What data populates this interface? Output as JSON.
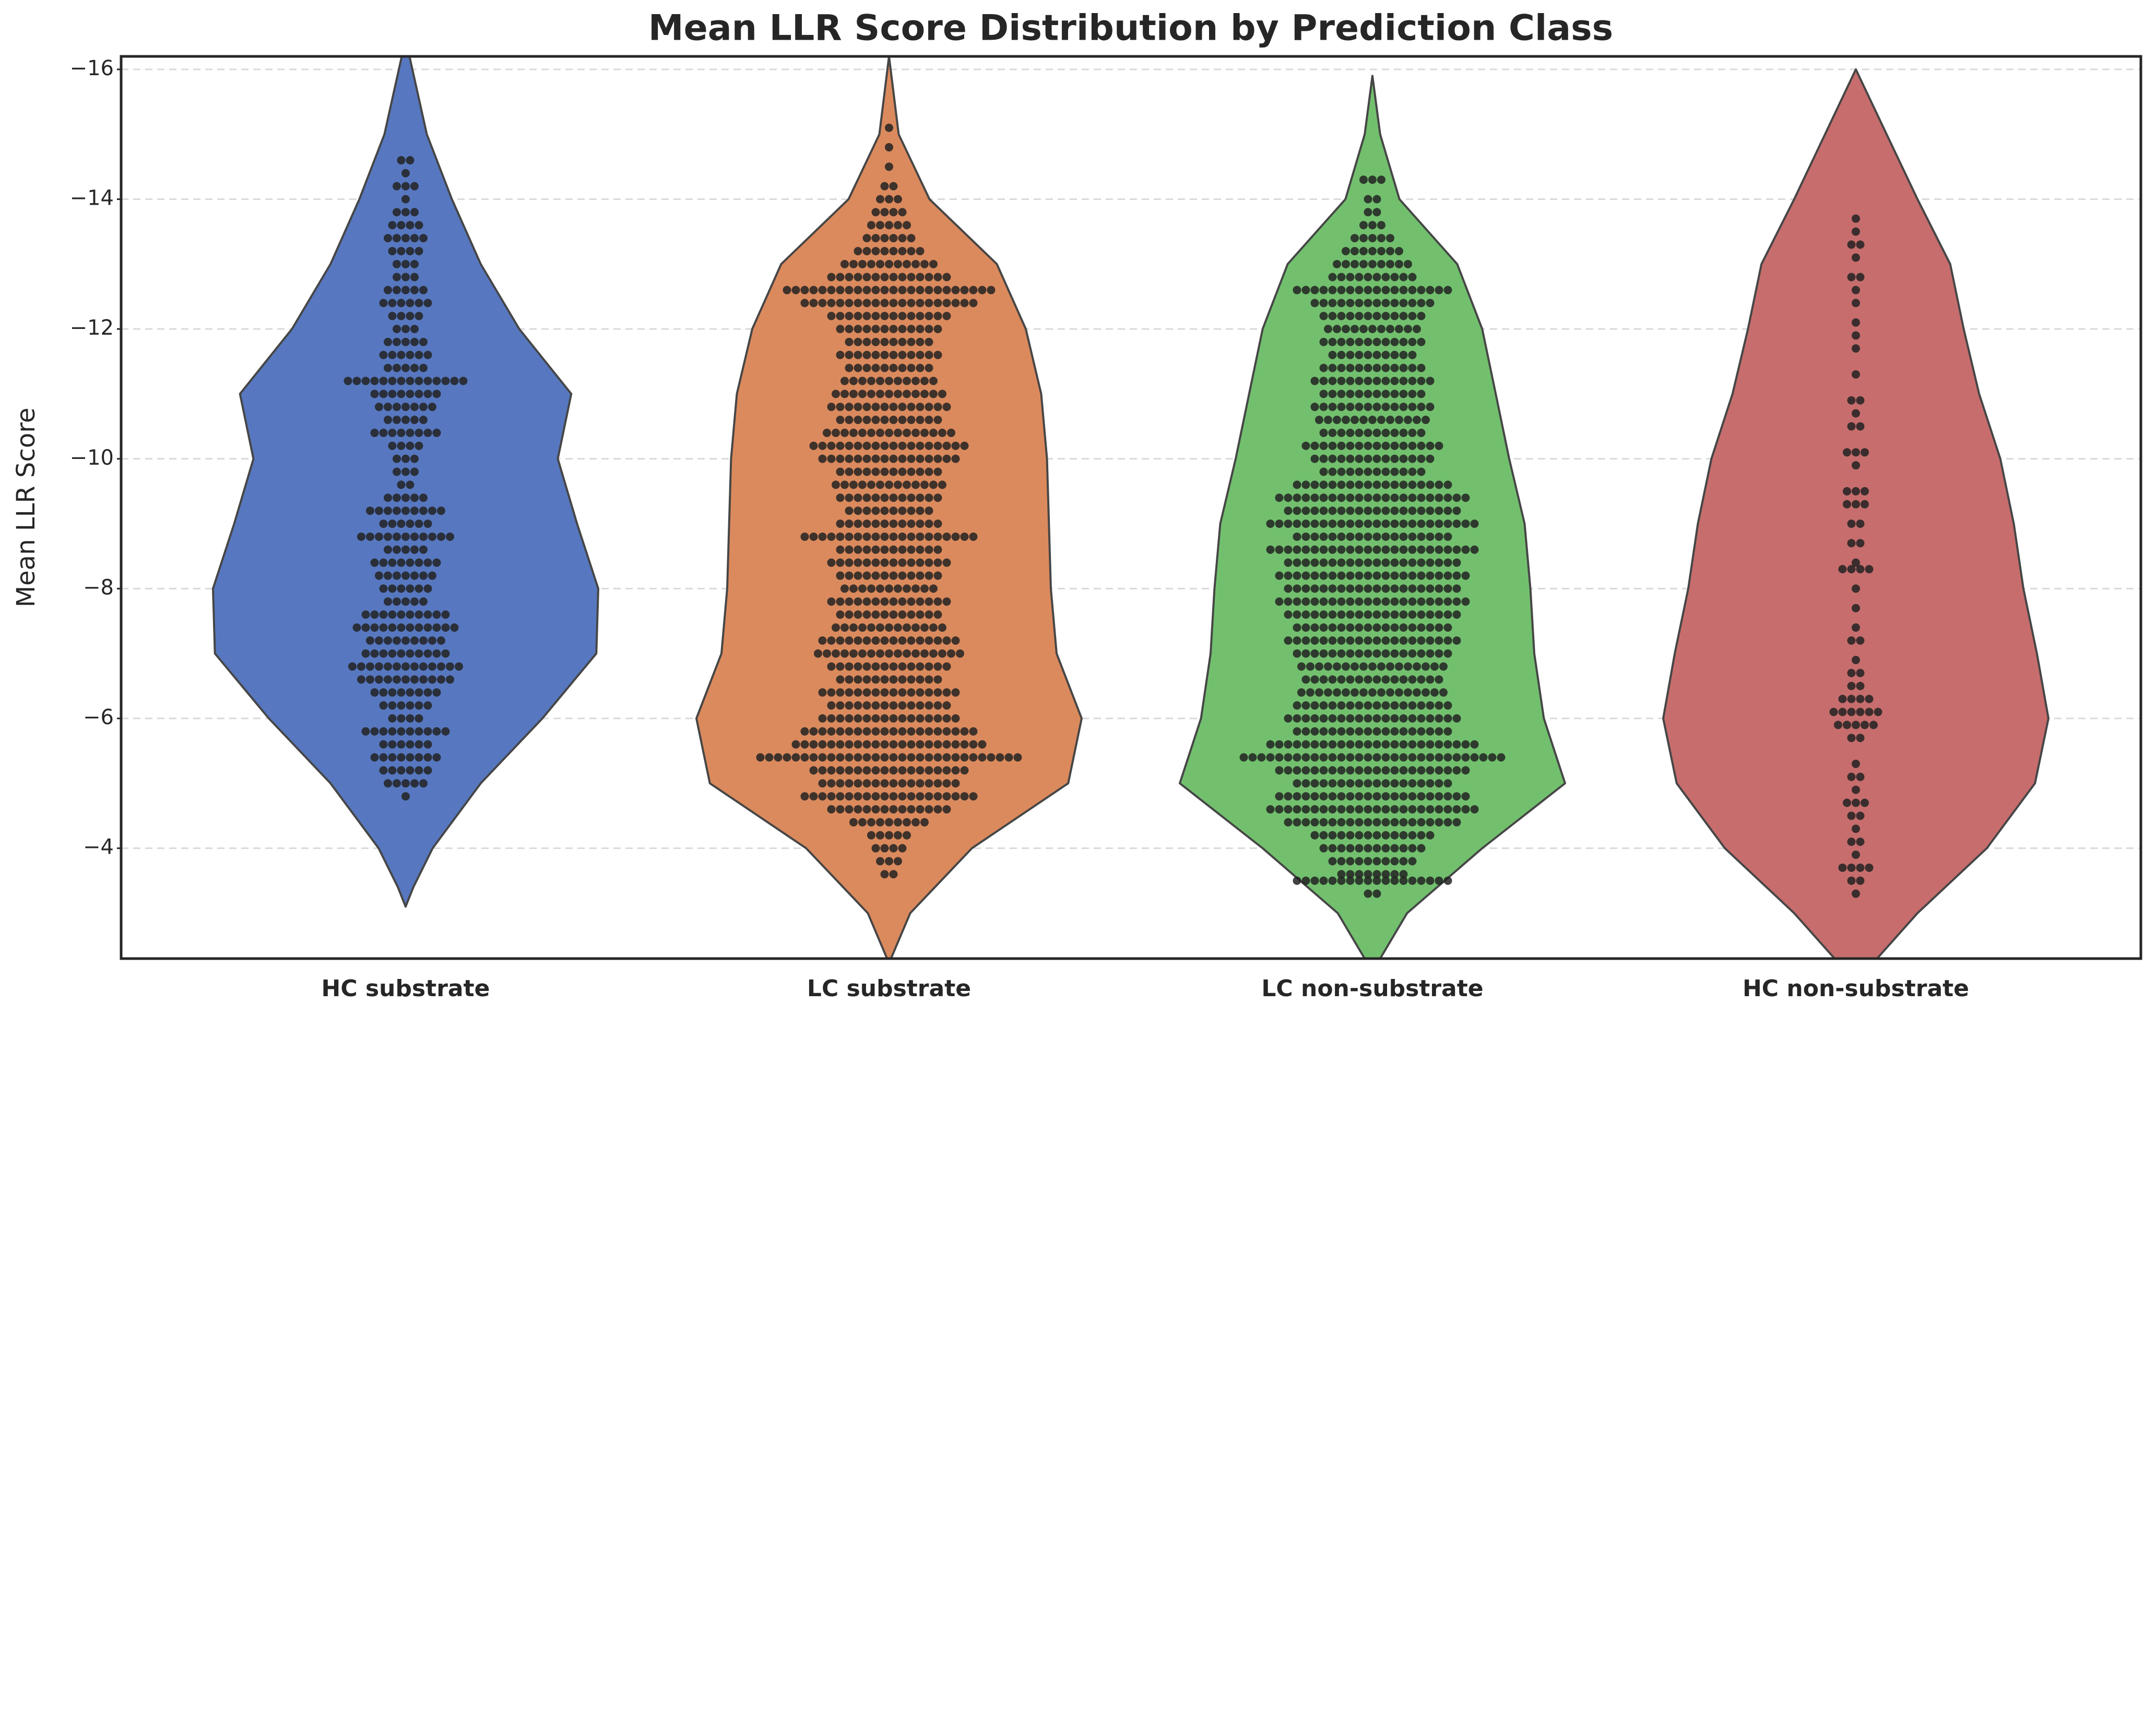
{
  "chart_data": {
    "type": "violin",
    "title": "Mean LLR Score Distribution by Prediction Class",
    "y_label": "Mean LLR Score",
    "categories": [
      "HC substrate",
      "LC substrate",
      "LC non-substrate",
      "HC non-substrate"
    ],
    "ylim": [
      -2.3,
      -16.2
    ],
    "yticks": [
      {
        "value": -16,
        "label": "−16"
      },
      {
        "value": -14,
        "label": "−14"
      },
      {
        "value": -12,
        "label": "−12"
      },
      {
        "value": -10,
        "label": "−10"
      },
      {
        "value": -8,
        "label": "−8"
      },
      {
        "value": -6,
        "label": "−6"
      },
      {
        "value": -4,
        "label": "−4"
      }
    ],
    "grid": true,
    "series": [
      {
        "name": "HC substrate",
        "color": "#5778c0",
        "density": {
          "y": [
            -16.2,
            -15,
            -14,
            -13,
            -12,
            -11,
            -10,
            -9,
            -8,
            -7,
            -6,
            -5,
            -4,
            -3.4,
            -3.1
          ],
          "width": [
            0.02,
            0.11,
            0.24,
            0.39,
            0.59,
            0.86,
            0.79,
            0.89,
            1.0,
            0.99,
            0.71,
            0.39,
            0.14,
            0.04,
            0
          ]
        },
        "points": [
          [
            -14.6,
            2
          ],
          [
            -14.4,
            1
          ],
          [
            -14.2,
            3
          ],
          [
            -14.0,
            1
          ],
          [
            -13.8,
            3
          ],
          [
            -13.6,
            4
          ],
          [
            -13.4,
            5
          ],
          [
            -13.2,
            4
          ],
          [
            -13.0,
            3
          ],
          [
            -12.8,
            3
          ],
          [
            -12.6,
            5
          ],
          [
            -12.4,
            6
          ],
          [
            -12.2,
            4
          ],
          [
            -12.0,
            3
          ],
          [
            -11.8,
            5
          ],
          [
            -11.6,
            6
          ],
          [
            -11.4,
            5
          ],
          [
            -11.2,
            14
          ],
          [
            -11.0,
            8
          ],
          [
            -10.8,
            7
          ],
          [
            -10.6,
            5
          ],
          [
            -10.4,
            8
          ],
          [
            -10.2,
            4
          ],
          [
            -10.0,
            3
          ],
          [
            -9.8,
            3
          ],
          [
            -9.6,
            2
          ],
          [
            -9.4,
            5
          ],
          [
            -9.2,
            9
          ],
          [
            -9.0,
            6
          ],
          [
            -8.8,
            11
          ],
          [
            -8.6,
            5
          ],
          [
            -8.4,
            8
          ],
          [
            -8.2,
            7
          ],
          [
            -8.0,
            6
          ],
          [
            -7.8,
            5
          ],
          [
            -7.6,
            10
          ],
          [
            -7.4,
            12
          ],
          [
            -7.2,
            9
          ],
          [
            -7.0,
            10
          ],
          [
            -6.8,
            13
          ],
          [
            -6.6,
            11
          ],
          [
            -6.4,
            8
          ],
          [
            -6.2,
            6
          ],
          [
            -6.0,
            4
          ],
          [
            -5.8,
            10
          ],
          [
            -5.6,
            6
          ],
          [
            -5.4,
            8
          ],
          [
            -5.2,
            6
          ],
          [
            -5.0,
            5
          ],
          [
            -4.8,
            1
          ]
        ]
      },
      {
        "name": "LC substrate",
        "color": "#db8a5d",
        "density": {
          "y": [
            -16.2,
            -15,
            -14,
            -13,
            -12,
            -11,
            -10,
            -8,
            -7,
            -6,
            -5,
            -4,
            -3,
            -2.3
          ],
          "width": [
            0,
            0.05,
            0.21,
            0.56,
            0.71,
            0.79,
            0.82,
            0.84,
            0.87,
            1.0,
            0.93,
            0.43,
            0.11,
            0.01
          ]
        },
        "points": [
          [
            -15.1,
            1
          ],
          [
            -14.8,
            1
          ],
          [
            -14.5,
            1
          ],
          [
            -14.2,
            2
          ],
          [
            -14.0,
            3
          ],
          [
            -13.8,
            4
          ],
          [
            -13.6,
            5
          ],
          [
            -13.4,
            6
          ],
          [
            -13.2,
            8
          ],
          [
            -13.0,
            11
          ],
          [
            -12.8,
            14
          ],
          [
            -12.6,
            24
          ],
          [
            -12.4,
            20
          ],
          [
            -12.2,
            14
          ],
          [
            -12.0,
            12
          ],
          [
            -11.8,
            10
          ],
          [
            -11.6,
            12
          ],
          [
            -11.4,
            10
          ],
          [
            -11.2,
            11
          ],
          [
            -11.0,
            13
          ],
          [
            -10.8,
            14
          ],
          [
            -10.6,
            12
          ],
          [
            -10.4,
            15
          ],
          [
            -10.2,
            18
          ],
          [
            -10.0,
            16
          ],
          [
            -9.8,
            12
          ],
          [
            -9.6,
            13
          ],
          [
            -9.4,
            12
          ],
          [
            -9.2,
            10
          ],
          [
            -9.0,
            12
          ],
          [
            -8.8,
            20
          ],
          [
            -8.6,
            12
          ],
          [
            -8.4,
            14
          ],
          [
            -8.2,
            12
          ],
          [
            -8.0,
            11
          ],
          [
            -7.8,
            14
          ],
          [
            -7.6,
            12
          ],
          [
            -7.4,
            13
          ],
          [
            -7.2,
            16
          ],
          [
            -7.0,
            17
          ],
          [
            -6.8,
            14
          ],
          [
            -6.6,
            12
          ],
          [
            -6.4,
            16
          ],
          [
            -6.2,
            14
          ],
          [
            -6.0,
            16
          ],
          [
            -5.8,
            20
          ],
          [
            -5.6,
            22
          ],
          [
            -5.4,
            30
          ],
          [
            -5.2,
            18
          ],
          [
            -5.0,
            16
          ],
          [
            -4.8,
            20
          ],
          [
            -4.6,
            14
          ],
          [
            -4.4,
            9
          ],
          [
            -4.2,
            5
          ],
          [
            -4.0,
            4
          ],
          [
            -3.8,
            3
          ],
          [
            -3.6,
            2
          ]
        ]
      },
      {
        "name": "LC non-substrate",
        "color": "#72c06e",
        "density": {
          "y": [
            -15.9,
            -15,
            -14,
            -13,
            -12,
            -11,
            -10,
            -9,
            -8,
            -7,
            -6,
            -5,
            -4,
            -3,
            -2.3
          ],
          "width": [
            0,
            0.04,
            0.14,
            0.44,
            0.57,
            0.64,
            0.71,
            0.79,
            0.82,
            0.84,
            0.89,
            1.0,
            0.57,
            0.18,
            0.04
          ]
        },
        "points": [
          [
            -14.3,
            3
          ],
          [
            -14.0,
            2
          ],
          [
            -13.8,
            2
          ],
          [
            -13.6,
            3
          ],
          [
            -13.4,
            5
          ],
          [
            -13.2,
            7
          ],
          [
            -13.0,
            9
          ],
          [
            -12.8,
            10
          ],
          [
            -12.6,
            18
          ],
          [
            -12.4,
            14
          ],
          [
            -12.2,
            12
          ],
          [
            -12.0,
            11
          ],
          [
            -11.8,
            12
          ],
          [
            -11.6,
            10
          ],
          [
            -11.4,
            12
          ],
          [
            -11.2,
            14
          ],
          [
            -11.0,
            12
          ],
          [
            -10.8,
            14
          ],
          [
            -10.6,
            13
          ],
          [
            -10.4,
            12
          ],
          [
            -10.2,
            16
          ],
          [
            -10.0,
            14
          ],
          [
            -9.8,
            12
          ],
          [
            -9.6,
            18
          ],
          [
            -9.4,
            22
          ],
          [
            -9.2,
            20
          ],
          [
            -9.0,
            24
          ],
          [
            -8.8,
            18
          ],
          [
            -8.6,
            24
          ],
          [
            -8.4,
            20
          ],
          [
            -8.2,
            22
          ],
          [
            -8.0,
            20
          ],
          [
            -7.8,
            22
          ],
          [
            -7.6,
            20
          ],
          [
            -7.4,
            18
          ],
          [
            -7.2,
            20
          ],
          [
            -7.0,
            18
          ],
          [
            -6.8,
            17
          ],
          [
            -6.6,
            16
          ],
          [
            -6.4,
            17
          ],
          [
            -6.2,
            18
          ],
          [
            -6.0,
            20
          ],
          [
            -5.8,
            18
          ],
          [
            -5.6,
            24
          ],
          [
            -5.4,
            30
          ],
          [
            -5.2,
            22
          ],
          [
            -5.0,
            18
          ],
          [
            -4.8,
            22
          ],
          [
            -4.6,
            24
          ],
          [
            -4.4,
            20
          ],
          [
            -4.2,
            14
          ],
          [
            -4.0,
            12
          ],
          [
            -3.8,
            10
          ],
          [
            -3.6,
            8
          ],
          [
            -3.5,
            18
          ],
          [
            -3.3,
            2
          ]
        ]
      },
      {
        "name": "HC non-substrate",
        "color": "#c76d6d",
        "density": {
          "y": [
            -16,
            -15,
            -14,
            -13,
            -12,
            -11,
            -10,
            -9,
            -8,
            -7,
            -6,
            -5,
            -4,
            -3,
            -2.3
          ],
          "width": [
            0,
            0.16,
            0.32,
            0.49,
            0.56,
            0.64,
            0.75,
            0.82,
            0.87,
            0.94,
            1.0,
            0.93,
            0.68,
            0.32,
            0.11
          ]
        },
        "points": [
          [
            -13.7,
            1
          ],
          [
            -13.5,
            1
          ],
          [
            -13.3,
            2
          ],
          [
            -13.1,
            1
          ],
          [
            -12.8,
            2
          ],
          [
            -12.6,
            1
          ],
          [
            -12.4,
            1
          ],
          [
            -12.1,
            1
          ],
          [
            -11.9,
            1
          ],
          [
            -11.7,
            1
          ],
          [
            -11.3,
            1
          ],
          [
            -10.9,
            2
          ],
          [
            -10.7,
            1
          ],
          [
            -10.5,
            2
          ],
          [
            -10.1,
            3
          ],
          [
            -9.9,
            1
          ],
          [
            -9.5,
            3
          ],
          [
            -9.3,
            3
          ],
          [
            -9.0,
            2
          ],
          [
            -8.7,
            2
          ],
          [
            -8.4,
            1
          ],
          [
            -8.3,
            4
          ],
          [
            -8.0,
            1
          ],
          [
            -7.7,
            1
          ],
          [
            -7.4,
            1
          ],
          [
            -7.2,
            2
          ],
          [
            -6.9,
            1
          ],
          [
            -6.7,
            2
          ],
          [
            -6.5,
            2
          ],
          [
            -6.3,
            4
          ],
          [
            -6.1,
            6
          ],
          [
            -5.9,
            5
          ],
          [
            -5.7,
            2
          ],
          [
            -5.3,
            1
          ],
          [
            -5.1,
            2
          ],
          [
            -4.9,
            1
          ],
          [
            -4.7,
            3
          ],
          [
            -4.5,
            2
          ],
          [
            -4.3,
            1
          ],
          [
            -4.1,
            2
          ],
          [
            -3.9,
            1
          ],
          [
            -3.7,
            4
          ],
          [
            -3.5,
            2
          ],
          [
            -3.3,
            1
          ]
        ]
      }
    ]
  }
}
